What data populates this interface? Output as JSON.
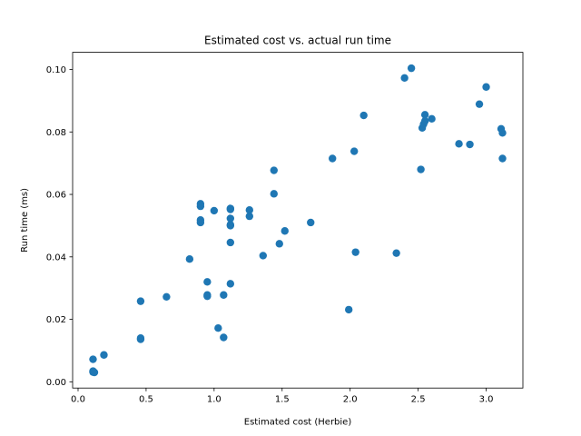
{
  "chart_data": {
    "type": "scatter",
    "title": "Estimated cost vs. actual run time",
    "xlabel": "Estimated cost (Herbie)",
    "ylabel": "Run time (ms)",
    "xlim": [
      -0.04,
      3.27
    ],
    "ylim": [
      -0.002,
      0.1055
    ],
    "xticks": [
      0.0,
      0.5,
      1.0,
      1.5,
      2.0,
      2.5,
      3.0
    ],
    "xtick_labels": [
      "0.0",
      "0.5",
      "1.0",
      "1.5",
      "2.0",
      "2.5",
      "3.0"
    ],
    "yticks": [
      0.0,
      0.02,
      0.04,
      0.06,
      0.08,
      0.1
    ],
    "ytick_labels": [
      "0.00",
      "0.02",
      "0.04",
      "0.06",
      "0.08",
      "0.10"
    ],
    "grid": false,
    "marker_color": "#1f77b4",
    "points": [
      {
        "x": 0.11,
        "y": 0.0031
      },
      {
        "x": 0.11,
        "y": 0.0034
      },
      {
        "x": 0.12,
        "y": 0.003
      },
      {
        "x": 0.11,
        "y": 0.0072
      },
      {
        "x": 0.19,
        "y": 0.0086
      },
      {
        "x": 0.46,
        "y": 0.014
      },
      {
        "x": 0.46,
        "y": 0.0136
      },
      {
        "x": 0.46,
        "y": 0.0258
      },
      {
        "x": 0.65,
        "y": 0.0272
      },
      {
        "x": 0.82,
        "y": 0.0393
      },
      {
        "x": 0.9,
        "y": 0.057
      },
      {
        "x": 0.9,
        "y": 0.0562
      },
      {
        "x": 0.9,
        "y": 0.0518
      },
      {
        "x": 0.9,
        "y": 0.051
      },
      {
        "x": 0.95,
        "y": 0.032
      },
      {
        "x": 0.95,
        "y": 0.0278
      },
      {
        "x": 0.95,
        "y": 0.0274
      },
      {
        "x": 1.0,
        "y": 0.0548
      },
      {
        "x": 1.03,
        "y": 0.0172
      },
      {
        "x": 1.07,
        "y": 0.0278
      },
      {
        "x": 1.07,
        "y": 0.0142
      },
      {
        "x": 1.12,
        "y": 0.0555
      },
      {
        "x": 1.12,
        "y": 0.0552
      },
      {
        "x": 1.12,
        "y": 0.0523
      },
      {
        "x": 1.12,
        "y": 0.0503
      },
      {
        "x": 1.12,
        "y": 0.05
      },
      {
        "x": 1.12,
        "y": 0.0446
      },
      {
        "x": 1.12,
        "y": 0.0314
      },
      {
        "x": 1.26,
        "y": 0.055
      },
      {
        "x": 1.26,
        "y": 0.053
      },
      {
        "x": 1.36,
        "y": 0.0404
      },
      {
        "x": 1.44,
        "y": 0.0677
      },
      {
        "x": 1.44,
        "y": 0.0602
      },
      {
        "x": 1.48,
        "y": 0.0442
      },
      {
        "x": 1.52,
        "y": 0.0483
      },
      {
        "x": 1.71,
        "y": 0.051
      },
      {
        "x": 1.87,
        "y": 0.0715
      },
      {
        "x": 1.99,
        "y": 0.0231
      },
      {
        "x": 2.03,
        "y": 0.0738
      },
      {
        "x": 2.04,
        "y": 0.0415
      },
      {
        "x": 2.1,
        "y": 0.0853
      },
      {
        "x": 2.34,
        "y": 0.0412
      },
      {
        "x": 2.4,
        "y": 0.0973
      },
      {
        "x": 2.45,
        "y": 0.1004
      },
      {
        "x": 2.52,
        "y": 0.068
      },
      {
        "x": 2.53,
        "y": 0.0813
      },
      {
        "x": 2.54,
        "y": 0.0825
      },
      {
        "x": 2.55,
        "y": 0.0855
      },
      {
        "x": 2.55,
        "y": 0.0835
      },
      {
        "x": 2.6,
        "y": 0.0842
      },
      {
        "x": 2.8,
        "y": 0.0762
      },
      {
        "x": 2.88,
        "y": 0.076
      },
      {
        "x": 2.95,
        "y": 0.0889
      },
      {
        "x": 3.0,
        "y": 0.0944
      },
      {
        "x": 3.11,
        "y": 0.081
      },
      {
        "x": 3.12,
        "y": 0.0797
      },
      {
        "x": 3.12,
        "y": 0.0715
      }
    ]
  }
}
